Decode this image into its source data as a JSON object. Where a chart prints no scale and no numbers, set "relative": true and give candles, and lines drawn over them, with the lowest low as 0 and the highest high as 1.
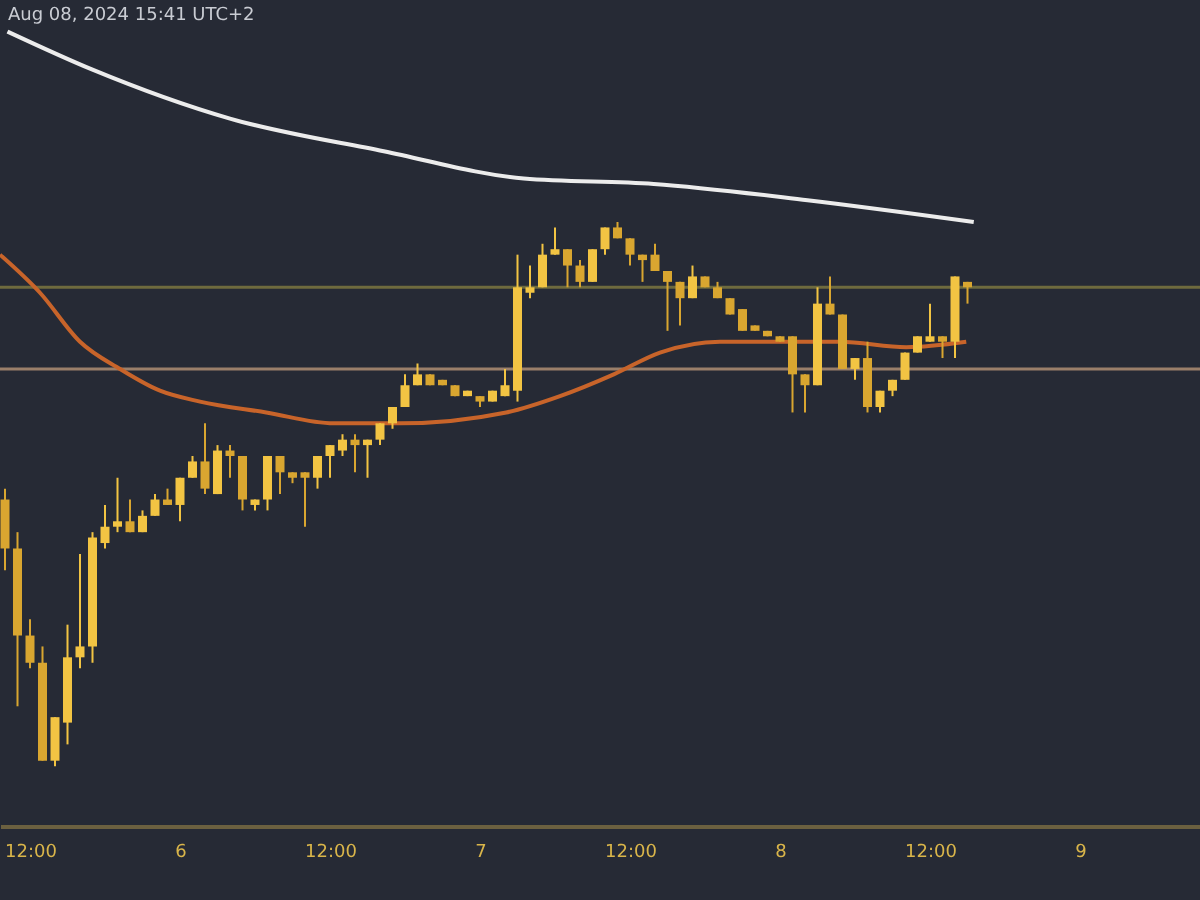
{
  "chart_data": {
    "type": "candlestick",
    "relative": true,
    "colors": [
      "#d9a630",
      "#d9a630",
      "#d9a630",
      "#d9a630",
      "#f2c443",
      "#f2c443",
      "#f2c443",
      "#f2c443",
      "#f2c443",
      "#f2c443",
      "#d9a630",
      "#f2c443",
      "#f2c443",
      "#d9a630",
      "#f2c443",
      "#f2c443",
      "#d9a630",
      "#f2c443",
      "#d9a630",
      "#d9a630",
      "#f2c443",
      "#f2c443",
      "#d9a630",
      "#d9a630",
      "#d9a630",
      "#f2c443",
      "#f2c443",
      "#f2c443",
      "#d9a630",
      "#f2c443",
      "#f2c443",
      "#f2c443",
      "#f2c443",
      "#f2c443",
      "#d9a630",
      "#d9a630",
      "#d9a630",
      "#f2c443",
      "#d9a630",
      "#f2c443",
      "#f2c443",
      "#f2c443",
      "#f2c443",
      "#f2c443",
      "#f2c443",
      "#d9a630",
      "#d9a630",
      "#f2c443",
      "#f2c443",
      "#d9a630",
      "#d9a630",
      "#d9a630",
      "#d9a630",
      "#d9a630",
      "#d9a630",
      "#f2c443",
      "#d9a630",
      "#d9a630",
      "#d9a630",
      "#d9a630",
      "#d9a630",
      "#d9a630",
      "#d9a630",
      "#d9a630",
      "#d9a630",
      "#f2c443",
      "#d9a630",
      "#d9a630",
      "#f2c443",
      "#d9a630",
      "#f2c443",
      "#f2c443",
      "#f2c443",
      "#f2c443",
      "#f2c443",
      "#d9a630",
      "#f2c443",
      "#d9a630"
    ],
    "grid": false,
    "annotations": [
      "Aug 08, 2024 15:41 UTC+2"
    ],
    "xlim": [
      "2024-08-05T09:36",
      "2024-08-09T09:36"
    ],
    "xticks": [
      {
        "value": "2024-08-05T12:00",
        "label": "12:00"
      },
      {
        "value": "2024-08-06",
        "label": "6"
      },
      {
        "value": "2024-08-06T12:00",
        "label": "12:00"
      },
      {
        "value": "2024-08-07",
        "label": "7"
      },
      {
        "value": "2024-08-07T12:00",
        "label": "12:00"
      },
      {
        "value": "2024-08-08",
        "label": "8"
      },
      {
        "value": "2024-08-08T12:00",
        "label": "12:00"
      },
      {
        "value": "2024-08-09",
        "label": "9"
      }
    ],
    "x": [
      "2024-08-05T10:00",
      "2024-08-05T11:00",
      "2024-08-05T12:00",
      "2024-08-05T13:00",
      "2024-08-05T14:00",
      "2024-08-05T15:00",
      "2024-08-05T16:00",
      "2024-08-05T17:00",
      "2024-08-05T18:00",
      "2024-08-05T19:00",
      "2024-08-05T20:00",
      "2024-08-05T21:00",
      "2024-08-05T22:00",
      "2024-08-05T23:00",
      "2024-08-06T00:00",
      "2024-08-06T01:00",
      "2024-08-06T02:00",
      "2024-08-06T03:00",
      "2024-08-06T04:00",
      "2024-08-06T05:00",
      "2024-08-06T06:00",
      "2024-08-06T07:00",
      "2024-08-06T08:00",
      "2024-08-06T09:00",
      "2024-08-06T10:00",
      "2024-08-06T11:00",
      "2024-08-06T12:00",
      "2024-08-06T13:00",
      "2024-08-06T14:00",
      "2024-08-06T15:00",
      "2024-08-06T16:00",
      "2024-08-06T17:00",
      "2024-08-06T18:00",
      "2024-08-06T19:00",
      "2024-08-06T20:00",
      "2024-08-06T21:00",
      "2024-08-06T22:00",
      "2024-08-06T23:00",
      "2024-08-07T00:00",
      "2024-08-07T01:00",
      "2024-08-07T02:00",
      "2024-08-07T03:00",
      "2024-08-07T04:00",
      "2024-08-07T05:00",
      "2024-08-07T06:00",
      "2024-08-07T07:00",
      "2024-08-07T08:00",
      "2024-08-07T09:00",
      "2024-08-07T10:00",
      "2024-08-07T11:00",
      "2024-08-07T12:00",
      "2024-08-07T13:00",
      "2024-08-07T14:00",
      "2024-08-07T15:00",
      "2024-08-07T16:00",
      "2024-08-07T17:00",
      "2024-08-07T18:00",
      "2024-08-07T19:00",
      "2024-08-07T20:00",
      "2024-08-07T21:00",
      "2024-08-07T22:00",
      "2024-08-07T23:00",
      "2024-08-08T00:00",
      "2024-08-08T01:00",
      "2024-08-08T02:00",
      "2024-08-08T03:00",
      "2024-08-08T04:00",
      "2024-08-08T05:00",
      "2024-08-08T06:00",
      "2024-08-08T07:00",
      "2024-08-08T08:00",
      "2024-08-08T09:00",
      "2024-08-08T10:00",
      "2024-08-08T11:00",
      "2024-08-08T12:00",
      "2024-08-08T13:00",
      "2024-08-08T14:00",
      "2024-08-08T15:00"
    ],
    "ohlc": [
      [
        0.49,
        0.51,
        0.36,
        0.4
      ],
      [
        0.4,
        0.43,
        0.11,
        0.24
      ],
      [
        0.24,
        0.27,
        0.18,
        0.19
      ],
      [
        0.19,
        0.22,
        0.01,
        0.01
      ],
      [
        0.01,
        0.09,
        0,
        0.09
      ],
      [
        0.08,
        0.26,
        0.04,
        0.2
      ],
      [
        0.2,
        0.39,
        0.18,
        0.22
      ],
      [
        0.22,
        0.43,
        0.19,
        0.42
      ],
      [
        0.41,
        0.48,
        0.4,
        0.44
      ],
      [
        0.44,
        0.53,
        0.43,
        0.45
      ],
      [
        0.45,
        0.49,
        0.43,
        0.43
      ],
      [
        0.43,
        0.47,
        0.43,
        0.46
      ],
      [
        0.46,
        0.5,
        0.46,
        0.49
      ],
      [
        0.49,
        0.51,
        0.48,
        0.48
      ],
      [
        0.48,
        0.53,
        0.45,
        0.53
      ],
      [
        0.53,
        0.57,
        0.53,
        0.56
      ],
      [
        0.56,
        0.63,
        0.5,
        0.51
      ],
      [
        0.5,
        0.59,
        0.5,
        0.58
      ],
      [
        0.58,
        0.59,
        0.53,
        0.57
      ],
      [
        0.57,
        0.57,
        0.47,
        0.49
      ],
      [
        0.48,
        0.49,
        0.47,
        0.49
      ],
      [
        0.49,
        0.57,
        0.47,
        0.57
      ],
      [
        0.57,
        0.57,
        0.5,
        0.54
      ],
      [
        0.54,
        0.54,
        0.52,
        0.53
      ],
      [
        0.54,
        0.54,
        0.44,
        0.53
      ],
      [
        0.53,
        0.57,
        0.51,
        0.57
      ],
      [
        0.57,
        0.59,
        0.53,
        0.59
      ],
      [
        0.58,
        0.61,
        0.57,
        0.6
      ],
      [
        0.6,
        0.61,
        0.54,
        0.59
      ],
      [
        0.59,
        0.6,
        0.53,
        0.6
      ],
      [
        0.6,
        0.63,
        0.59,
        0.63
      ],
      [
        0.63,
        0.66,
        0.62,
        0.66
      ],
      [
        0.66,
        0.72,
        0.66,
        0.7
      ],
      [
        0.7,
        0.74,
        0.7,
        0.72
      ],
      [
        0.72,
        0.72,
        0.7,
        0.7
      ],
      [
        0.71,
        0.71,
        0.7,
        0.7
      ],
      [
        0.7,
        0.7,
        0.68,
        0.68
      ],
      [
        0.68,
        0.69,
        0.68,
        0.69
      ],
      [
        0.68,
        0.68,
        0.66,
        0.67
      ],
      [
        0.67,
        0.69,
        0.67,
        0.69
      ],
      [
        0.68,
        0.73,
        0.68,
        0.7
      ],
      [
        0.69,
        0.94,
        0.67,
        0.88
      ],
      [
        0.87,
        0.92,
        0.86,
        0.88
      ],
      [
        0.88,
        0.96,
        0.88,
        0.94
      ],
      [
        0.94,
        0.99,
        0.94,
        0.95
      ],
      [
        0.95,
        0.95,
        0.88,
        0.92
      ],
      [
        0.92,
        0.93,
        0.88,
        0.89
      ],
      [
        0.89,
        0.95,
        0.89,
        0.95
      ],
      [
        0.95,
        0.99,
        0.94,
        0.99
      ],
      [
        0.99,
        1,
        0.97,
        0.97
      ],
      [
        0.97,
        0.97,
        0.92,
        0.94
      ],
      [
        0.94,
        0.94,
        0.89,
        0.93
      ],
      [
        0.94,
        0.96,
        0.91,
        0.91
      ],
      [
        0.91,
        0.91,
        0.8,
        0.89
      ],
      [
        0.89,
        0.89,
        0.81,
        0.86
      ],
      [
        0.86,
        0.92,
        0.86,
        0.9
      ],
      [
        0.9,
        0.9,
        0.88,
        0.88
      ],
      [
        0.88,
        0.89,
        0.86,
        0.86
      ],
      [
        0.86,
        0.86,
        0.83,
        0.83
      ],
      [
        0.84,
        0.84,
        0.8,
        0.8
      ],
      [
        0.81,
        0.81,
        0.8,
        0.8
      ],
      [
        0.8,
        0.8,
        0.79,
        0.79
      ],
      [
        0.79,
        0.79,
        0.78,
        0.78
      ],
      [
        0.79,
        0.79,
        0.65,
        0.72
      ],
      [
        0.72,
        0.72,
        0.65,
        0.7
      ],
      [
        0.7,
        0.88,
        0.7,
        0.85
      ],
      [
        0.85,
        0.9,
        0.83,
        0.83
      ],
      [
        0.83,
        0.83,
        0.73,
        0.73
      ],
      [
        0.73,
        0.75,
        0.71,
        0.75
      ],
      [
        0.75,
        0.78,
        0.65,
        0.66
      ],
      [
        0.66,
        0.69,
        0.65,
        0.69
      ],
      [
        0.69,
        0.71,
        0.68,
        0.71
      ],
      [
        0.71,
        0.76,
        0.71,
        0.76
      ],
      [
        0.76,
        0.79,
        0.76,
        0.79
      ],
      [
        0.78,
        0.85,
        0.78,
        0.79
      ],
      [
        0.79,
        0.79,
        0.75,
        0.78
      ],
      [
        0.78,
        0.9,
        0.75,
        0.9
      ],
      [
        0.89,
        0.89,
        0.85,
        0.88
      ]
    ],
    "series": [
      {
        "type": "line",
        "color": "#c8642a",
        "x": [
          "2024-08-05T09:36",
          "2024-08-05T12:48",
          "2024-08-05T16:00",
          "2024-08-05T19:12",
          "2024-08-05T22:24",
          "2024-08-06T01:36",
          "2024-08-06T06:54",
          "2024-08-06T12:18",
          "2024-08-06T17:36",
          "2024-08-07T02:06",
          "2024-08-07T06:24",
          "2024-08-07T10:42",
          "2024-08-07T14:24",
          "2024-08-07T19:12",
          "2024-08-07T23:30",
          "2024-08-08T04:48",
          "2024-08-08T10:06",
          "2024-08-08T14:54"
        ],
        "values": [
          0.94,
          0.87,
          0.78,
          0.73,
          0.69,
          0.67,
          0.65,
          0.63,
          0.63,
          0.65,
          0.68,
          0.72,
          0.76,
          0.78,
          0.78,
          0.78,
          0.77,
          0.78
        ]
      },
      {
        "type": "line",
        "color": "#ececec",
        "x": [
          "2024-08-05T10:12",
          "2024-08-05T17:00",
          "2024-08-06T04:00",
          "2024-08-06T16:18",
          "2024-08-07T03:30",
          "2024-08-07T13:54",
          "2024-08-08T02:12",
          "2024-08-08T15:30"
        ],
        "values": [
          1.35,
          1.28,
          1.19,
          1.13,
          1.08,
          1.07,
          1.04,
          1.0
        ]
      }
    ],
    "ref_lines": [
      {
        "axis": "y",
        "value": 0.88,
        "color": "#6e6a3e"
      },
      {
        "axis": "y",
        "value": 0.73,
        "color": "#9a7f6a"
      }
    ]
  }
}
